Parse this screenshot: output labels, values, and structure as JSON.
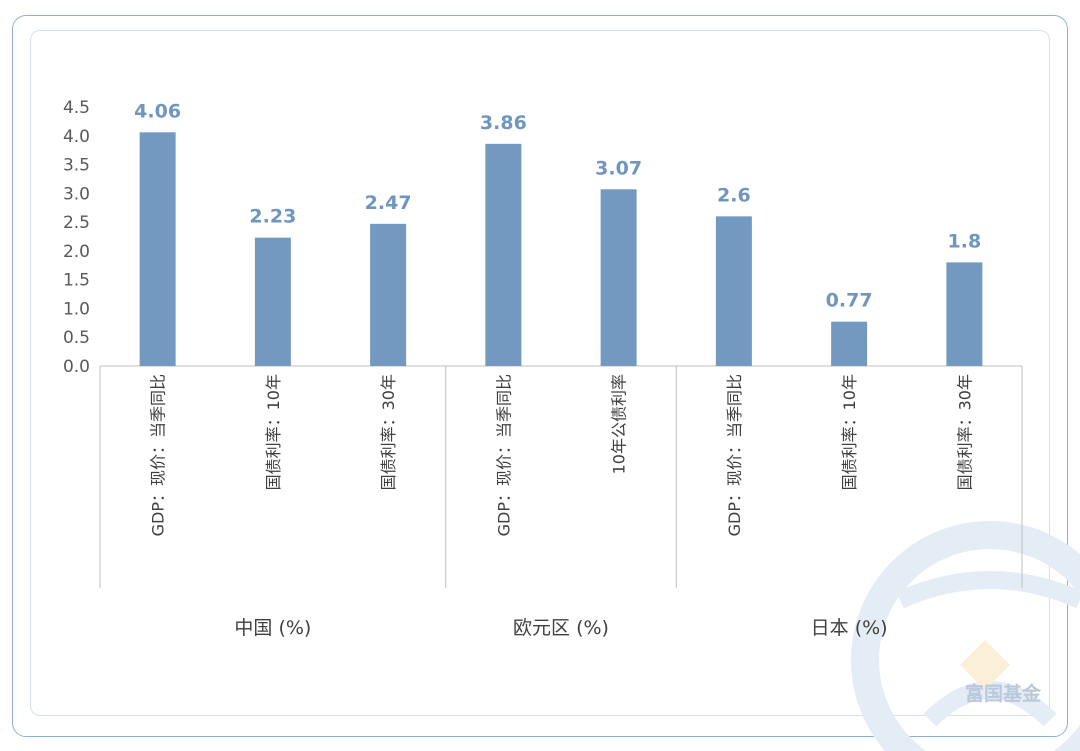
{
  "colors": {
    "bar": "#7399c0",
    "label": "#7095be",
    "axis": "#bfbfbf",
    "text": "#404040",
    "frame": "#8fb0d6",
    "watermark": "#dfe8f3"
  },
  "watermark": {
    "text": "富国基金",
    "icon": "fund-logo-icon"
  },
  "chart_data": {
    "type": "bar",
    "ylim": [
      0,
      4.5
    ],
    "yticks": [
      "0.0",
      "0.5",
      "1.0",
      "1.5",
      "2.0",
      "2.5",
      "3.0",
      "3.5",
      "4.0",
      "4.5"
    ],
    "ytick_values": [
      0,
      0.5,
      1.0,
      1.5,
      2.0,
      2.5,
      3.0,
      3.5,
      4.0,
      4.5
    ],
    "grid": false,
    "legend": "none",
    "groups": [
      {
        "name": "中国 (%)",
        "categories": [
          "GDP：现价：当季同比",
          "国债利率：10年",
          "国债利率：30年"
        ],
        "values": [
          4.06,
          2.23,
          2.47
        ],
        "labels": [
          "4.06",
          "2.23",
          "2.47"
        ]
      },
      {
        "name": "欧元区 (%)",
        "categories": [
          "GDP：现价：当季同比",
          "10年公债利率"
        ],
        "values": [
          3.86,
          3.07
        ],
        "labels": [
          "3.86",
          "3.07"
        ]
      },
      {
        "name": "日本 (%)",
        "categories": [
          "GDP：现价：当季同比",
          "国债利率：10年",
          "国债利率：30年"
        ],
        "values": [
          2.6,
          0.77,
          1.8
        ],
        "labels": [
          "2.6",
          "0.77",
          "1.8"
        ]
      }
    ]
  }
}
